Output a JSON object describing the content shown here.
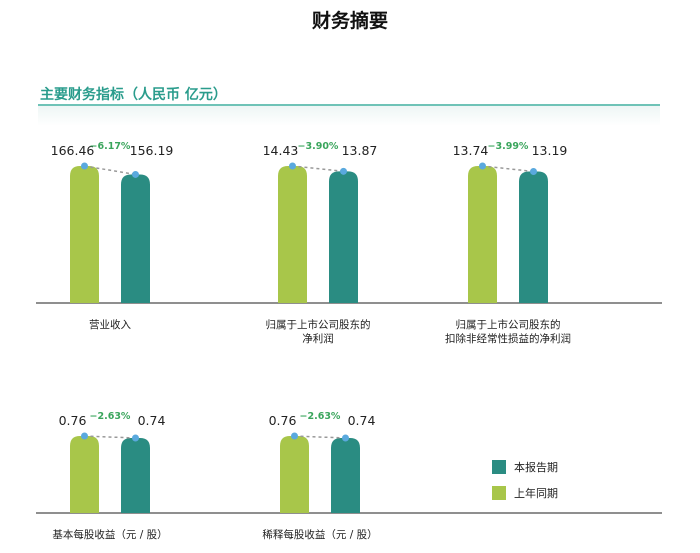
{
  "page": {
    "title": "财务摘要",
    "section_title": "主要财务指标（人民币 亿元）"
  },
  "colors": {
    "current": "#2a8c82",
    "prior": "#a8c64a",
    "change_text": "#3aa55c",
    "dot": "#5aa9de",
    "axis": "#4c4c4c",
    "dash": "#999999"
  },
  "chart_data": [
    {
      "type": "bar",
      "category_lines": [
        "营业收入"
      ],
      "series": [
        {
          "name": "上年同期",
          "values": [
            166.46
          ]
        },
        {
          "name": "本报告期",
          "values": [
            156.19
          ]
        }
      ],
      "value_labels": [
        "166.46",
        "156.19"
      ],
      "change": "−6.17%"
    },
    {
      "type": "bar",
      "category_lines": [
        "归属于上市公司股东的",
        "净利润"
      ],
      "series": [
        {
          "name": "上年同期",
          "values": [
            14.43
          ]
        },
        {
          "name": "本报告期",
          "values": [
            13.87
          ]
        }
      ],
      "value_labels": [
        "14.43",
        "13.87"
      ],
      "change": "−3.90%"
    },
    {
      "type": "bar",
      "category_lines": [
        "归属于上市公司股东的",
        "扣除非经常性损益的净利润"
      ],
      "series": [
        {
          "name": "上年同期",
          "values": [
            13.74
          ]
        },
        {
          "name": "本报告期",
          "values": [
            13.19
          ]
        }
      ],
      "value_labels": [
        "13.74",
        "13.19"
      ],
      "change": "−3.99%"
    },
    {
      "type": "bar",
      "category_lines": [
        "基本每股收益（元 / 股）"
      ],
      "series": [
        {
          "name": "上年同期",
          "values": [
            0.76
          ]
        },
        {
          "name": "本报告期",
          "values": [
            0.74
          ]
        }
      ],
      "value_labels": [
        "0.76",
        "0.74"
      ],
      "change": "−2.63%"
    },
    {
      "type": "bar",
      "category_lines": [
        "稀释每股收益（元 / 股）"
      ],
      "series": [
        {
          "name": "上年同期",
          "values": [
            0.76
          ]
        },
        {
          "name": "本报告期",
          "values": [
            0.74
          ]
        }
      ],
      "value_labels": [
        "0.76",
        "0.74"
      ],
      "change": "−2.63%"
    }
  ],
  "legend": {
    "items": [
      {
        "label": "本报告期",
        "color": "#2a8c82"
      },
      {
        "label": "上年同期",
        "color": "#a8c64a"
      }
    ]
  }
}
